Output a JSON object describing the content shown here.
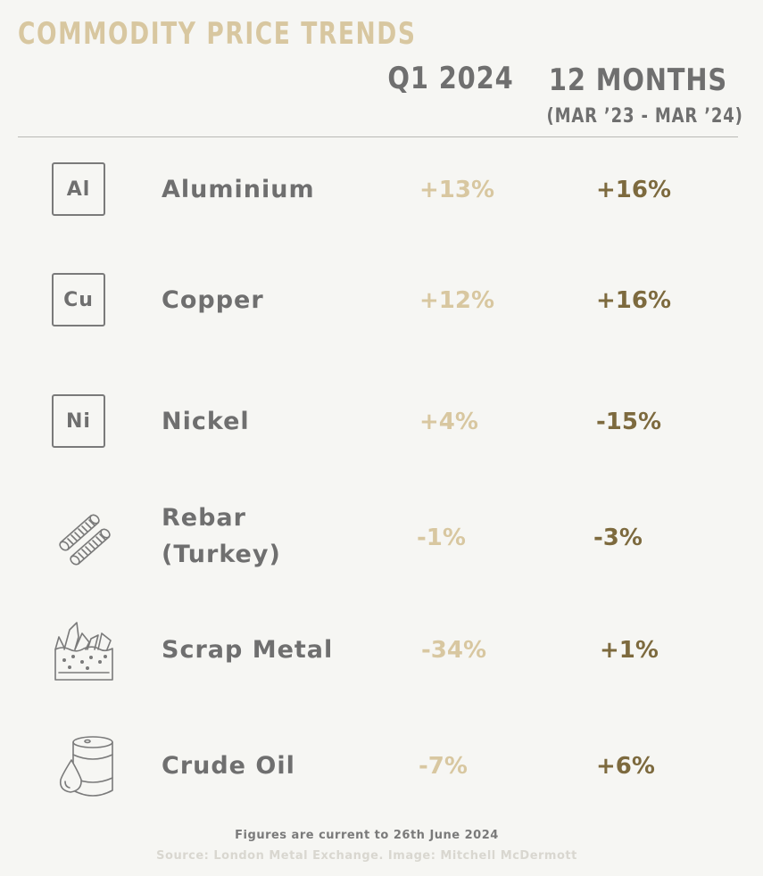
{
  "title": "COMMODITY PRICE TRENDS",
  "columns": {
    "q1": "Q1 2024",
    "twelve_months": "12 MONTHS",
    "twelve_months_sub": "(MAR ’23 - MAR ’24)"
  },
  "rows": [
    {
      "icon": "aluminium-element-icon",
      "symbol": "Al",
      "name": "Aluminium",
      "q1": "+13%",
      "m12": "+16%"
    },
    {
      "icon": "copper-element-icon",
      "symbol": "Cu",
      "name": "Copper",
      "q1": "+12%",
      "m12": "+16%"
    },
    {
      "icon": "nickel-element-icon",
      "symbol": "Ni",
      "name": "Nickel",
      "q1": "+4%",
      "m12": "-15%"
    },
    {
      "icon": "rebar-icon",
      "name_line1": "Rebar",
      "name_line2": "(Turkey)",
      "q1": "-1%",
      "m12": "-3%"
    },
    {
      "icon": "scrap-metal-icon",
      "name": "Scrap Metal",
      "q1": "-34%",
      "m12": "+1%"
    },
    {
      "icon": "oil-barrel-icon",
      "name": "Crude Oil",
      "q1": "-7%",
      "m12": "+6%"
    }
  ],
  "footnote": "Figures are current to 26th June 2024",
  "source": "Source: London Metal Exchange. Image: Mitchell McDermott",
  "colors": {
    "background": "#f6f6f3",
    "title": "#d8c7a0",
    "q1_values": "#d8c7a0",
    "twelve_month_values": "#7d6a3e",
    "labels": "#6f6f6f"
  }
}
